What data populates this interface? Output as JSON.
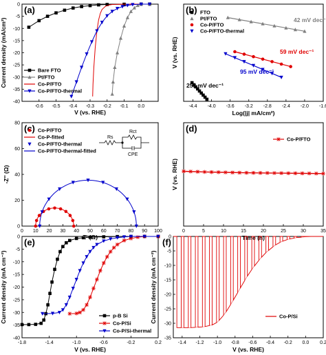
{
  "chart_data": [
    {
      "panel": "(a)",
      "type": "line",
      "xlabel": "V (vs. RHE)",
      "ylabel": "Current density (mA/cm²)",
      "xlim": [
        -0.7,
        0.1
      ],
      "ylim": [
        -40,
        0
      ],
      "xticks": [
        "-0.6",
        "-0.5",
        "-0.4",
        "-0.3",
        "-0.2",
        "-0.1",
        "0.0"
      ],
      "yticks": [
        "0",
        "-5",
        "-10",
        "-15",
        "-20",
        "-25",
        "-30",
        "-35",
        "-40"
      ],
      "legend_position": "bottom-left",
      "series": [
        {
          "name": "Bare FTO",
          "color": "#000000",
          "marker": "square",
          "x": [
            -0.66,
            -0.6,
            -0.55,
            -0.5,
            -0.45,
            -0.4,
            -0.35,
            -0.3,
            -0.25,
            -0.2,
            -0.1,
            0.0,
            0.05
          ],
          "y": [
            -9.5,
            -6.8,
            -5.0,
            -3.6,
            -2.5,
            -1.6,
            -1.0,
            -0.6,
            -0.3,
            -0.15,
            -0.05,
            0,
            0
          ]
        },
        {
          "name": "Pt/FTO",
          "color": "#808080",
          "marker": "triangle-up",
          "x": [
            -0.17,
            -0.165,
            -0.155,
            -0.14,
            -0.12,
            -0.1,
            -0.08,
            -0.06,
            -0.04,
            -0.02,
            0.0,
            0.05
          ],
          "y": [
            -37,
            -32,
            -26,
            -20,
            -14,
            -9,
            -5.5,
            -3,
            -1.5,
            -0.5,
            0,
            0
          ]
        },
        {
          "name": "Co-P/FTO",
          "color": "#e00000",
          "marker": "none",
          "x": [
            -0.285,
            -0.283,
            -0.278,
            -0.27,
            -0.26,
            -0.25,
            -0.24,
            -0.23,
            -0.21,
            -0.19,
            -0.17,
            -0.1,
            0.0,
            0.05
          ],
          "y": [
            -38,
            -33,
            -26,
            -18,
            -11,
            -6.5,
            -3.8,
            -2.2,
            -0.9,
            -0.4,
            -0.15,
            0,
            0,
            0
          ]
        },
        {
          "name": "Co-P/FTO-thermal",
          "color": "#0000cc",
          "marker": "triangle-down",
          "x": [
            -0.41,
            -0.38,
            -0.35,
            -0.32,
            -0.29,
            -0.26,
            -0.23,
            -0.2,
            -0.17,
            -0.14,
            -0.11,
            -0.08,
            -0.05,
            0.0,
            0.05
          ],
          "y": [
            -38,
            -32,
            -26,
            -20.5,
            -15.5,
            -11,
            -7.5,
            -4.8,
            -3,
            -1.8,
            -1,
            -0.5,
            -0.2,
            0,
            0
          ]
        }
      ]
    },
    {
      "panel": "(b)",
      "type": "scatter",
      "xlabel": "Log(|j| mA/cm²)",
      "ylabel": "V (vs. RHE)",
      "xlim": [
        -4.6,
        -1.6
      ],
      "xticks": [
        "-4.4",
        "-4.0",
        "-3.6",
        "-3.2",
        "-2.8",
        "-2.4",
        "-2.0",
        "-1.6"
      ],
      "legend_position": "top-left",
      "series": [
        {
          "name": "FTO",
          "color": "#000000",
          "marker": "square",
          "x": [
            -4.42,
            -4.38,
            -4.34,
            -4.3,
            -4.26,
            -4.22,
            -4.18,
            -4.14,
            -4.1
          ],
          "y": [
            -0.38,
            -0.39,
            -0.4,
            -0.41,
            -0.42,
            -0.43,
            -0.44,
            -0.45,
            -0.46
          ]
        },
        {
          "name": "Pt/FTO",
          "color": "#808080",
          "marker": "triangle-up",
          "x": [
            -3.65,
            -3.4,
            -3.15,
            -2.9,
            -2.65,
            -2.4,
            -2.2,
            -2.0
          ],
          "y": [
            -0.065,
            -0.075,
            -0.085,
            -0.095,
            -0.105,
            -0.115,
            -0.123,
            -0.131
          ]
        },
        {
          "name": "Co-P/FTO",
          "color": "#e00000",
          "marker": "circle",
          "x": [
            -3.5,
            -3.3,
            -3.1,
            -2.9,
            -2.7,
            -2.5,
            -2.3
          ],
          "y": [
            -0.23,
            -0.242,
            -0.254,
            -0.266,
            -0.278,
            -0.29,
            -0.302
          ]
        },
        {
          "name": "Co-P/FTO-thermal",
          "color": "#0000cc",
          "marker": "triangle-down",
          "x": [
            -3.7,
            -3.5,
            -3.3,
            -3.1,
            -2.9,
            -2.7,
            -2.5
          ],
          "y": [
            -0.24,
            -0.259,
            -0.278,
            -0.297,
            -0.316,
            -0.335,
            -0.354
          ]
        }
      ],
      "annotations": [
        {
          "text": "42 mV dec⁻¹",
          "color": "#808080"
        },
        {
          "text": "59 mV dec⁻¹",
          "color": "#e00000"
        },
        {
          "text": "95 mV dec⁻¹",
          "color": "#0000cc"
        },
        {
          "text": "253 mV dec⁻¹",
          "color": "#000000"
        }
      ]
    },
    {
      "panel": "(c)",
      "type": "scatter",
      "xlabel": "Z' (Ω)",
      "ylabel": "-Z'' (Ω)",
      "xlim": [
        0,
        100
      ],
      "ylim": [
        0,
        80
      ],
      "xticks": [
        "0",
        "10",
        "20",
        "30",
        "40",
        "50",
        "60",
        "70",
        "80",
        "90",
        "100"
      ],
      "yticks": [
        "0",
        "20",
        "40",
        "60",
        "80"
      ],
      "legend_position": "top-left",
      "series": [
        {
          "name": "Co-P/FTO",
          "color": "#e00000",
          "marker": "circle",
          "center": 24,
          "radius": 14
        },
        {
          "name": "Co-P-fitted",
          "color": "#e00000",
          "marker": "none",
          "center": 24,
          "radius": 14
        },
        {
          "name": "Co-P/FTO-thermal",
          "color": "#0000cc",
          "marker": "triangle-down",
          "center": 48.5,
          "radius": 35.5
        },
        {
          "name": "Co-P/FTO-thermal-fitted",
          "color": "#0000cc",
          "marker": "none",
          "center": 48.5,
          "radius": 35.5
        }
      ],
      "circuit_labels": [
        "Rs",
        "Rct",
        "CPE"
      ]
    },
    {
      "panel": "(d)",
      "type": "line",
      "xlabel": "Time (h)",
      "ylabel": "V (vs. RHE)",
      "xlim": [
        0,
        35
      ],
      "xticks": [
        "0",
        "5",
        "10",
        "15",
        "20",
        "25",
        "30",
        "35"
      ],
      "legend_position": "top-right",
      "series": [
        {
          "name": "Co-P/FTO",
          "color": "#e00000",
          "marker": "star",
          "x": [
            0,
            5,
            10,
            15,
            20,
            25,
            30,
            35
          ],
          "y": [
            -0.235,
            -0.238,
            -0.24,
            -0.242,
            -0.243,
            -0.244,
            -0.245,
            -0.246
          ]
        }
      ]
    },
    {
      "panel": "(e)",
      "type": "line",
      "xlabel": "V (vs. RHE)",
      "ylabel": "Current density (mA cm⁻²)",
      "xlim": [
        -1.8,
        0.2
      ],
      "ylim": [
        -40,
        0
      ],
      "xticks": [
        "-1.8",
        "-1.4",
        "-1.0",
        "-0.6",
        "-0.2",
        "0.2"
      ],
      "yticks": [
        "0",
        "-5",
        "-10",
        "-15",
        "-20",
        "-25",
        "-30",
        "-35",
        "-40"
      ],
      "legend_position": "bottom-right",
      "series": [
        {
          "name": "p-B Si",
          "color": "#000000",
          "marker": "square",
          "x": [
            -1.8,
            -1.7,
            -1.6,
            -1.52,
            -1.48,
            -1.45,
            -1.42,
            -1.39,
            -1.36,
            -1.32,
            -1.28,
            -1.24,
            -1.2,
            -1.15,
            -1.1,
            -1.0,
            -0.9,
            -0.8,
            -0.6,
            -0.4,
            -0.2,
            0.0,
            0.2
          ],
          "y": [
            -34.8,
            -34.8,
            -34.7,
            -34.3,
            -33,
            -30.5,
            -27,
            -22.5,
            -18,
            -13,
            -9,
            -6,
            -4,
            -2.5,
            -1.6,
            -0.8,
            -0.5,
            -0.3,
            -0.15,
            -0.05,
            0,
            0,
            0
          ]
        },
        {
          "name": "Co-P/Si",
          "color": "#e00000",
          "marker": "star",
          "x": [
            -1.1,
            -1.0,
            -0.95,
            -0.9,
            -0.85,
            -0.8,
            -0.75,
            -0.7,
            -0.65,
            -0.6,
            -0.55,
            -0.5,
            -0.45,
            -0.4,
            -0.3,
            -0.2,
            -0.1,
            0.0,
            0.2
          ],
          "y": [
            -30.5,
            -30.4,
            -30,
            -29,
            -27,
            -24,
            -20.5,
            -17,
            -13.5,
            -10.5,
            -8,
            -6,
            -4.4,
            -3.2,
            -1.6,
            -0.8,
            -0.3,
            0,
            0
          ]
        },
        {
          "name": "Co-P/Si-thermal",
          "color": "#0000cc",
          "marker": "triangle-down",
          "x": [
            -1.5,
            -1.35,
            -1.25,
            -1.2,
            -1.15,
            -1.1,
            -1.05,
            -1.0,
            -0.95,
            -0.9,
            -0.85,
            -0.8,
            -0.75,
            -0.7,
            -0.6,
            -0.5,
            -0.4,
            -0.3,
            -0.2,
            0.0,
            0.2
          ],
          "y": [
            -30.5,
            -30.4,
            -30,
            -29,
            -27,
            -24,
            -20.5,
            -17,
            -13.5,
            -10.5,
            -8,
            -6,
            -4.4,
            -3.2,
            -1.8,
            -1,
            -0.5,
            -0.2,
            0,
            0,
            0
          ]
        }
      ]
    },
    {
      "panel": "(f)",
      "type": "line",
      "xlabel": "V (vs. RHE)",
      "ylabel": "Current density (mA cm⁻²)",
      "xlim": [
        -1.5,
        0.2
      ],
      "ylim": [
        -35,
        0
      ],
      "xticks": [
        "-1.4",
        "-1.2",
        "-1.0",
        "-0.8",
        "-0.6",
        "-0.4",
        "-0.2",
        "0.0",
        "0.2"
      ],
      "yticks": [
        "0",
        "-5",
        "-10",
        "-15",
        "-20",
        "-25",
        "-30",
        "-35"
      ],
      "legend_position": "bottom-right",
      "series": [
        {
          "name": "Co-P/Si",
          "color": "#e00000",
          "marker": "none",
          "chopped": true,
          "envelope_x": [
            -1.45,
            -1.3,
            -1.15,
            -1.05,
            -1.0,
            -0.95,
            -0.9,
            -0.85,
            -0.8,
            -0.75,
            -0.7,
            -0.65,
            -0.6,
            -0.55,
            -0.5,
            -0.45,
            -0.4,
            -0.35,
            -0.3,
            -0.25,
            -0.2,
            -0.1,
            0.0,
            0.1,
            0.2
          ],
          "envelope_y": [
            -31.5,
            -31.5,
            -31.2,
            -30.5,
            -29.6,
            -28,
            -26,
            -23.5,
            -21,
            -18.3,
            -15.7,
            -13.2,
            -11,
            -9,
            -7.2,
            -5.6,
            -4.3,
            -3.1,
            -2.2,
            -1.5,
            -1,
            -0.4,
            -0.15,
            0,
            0
          ]
        }
      ]
    }
  ]
}
